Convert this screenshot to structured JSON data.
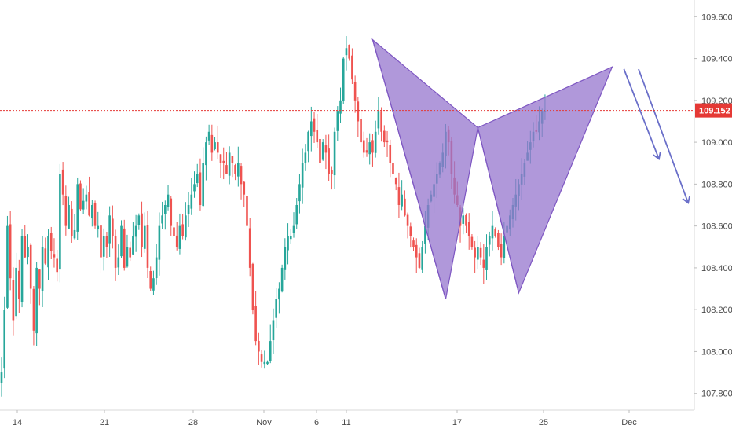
{
  "chart_data": {
    "type": "candlestick",
    "title": "",
    "xlabel": "",
    "ylabel": "",
    "ylim": [
      107.72,
      109.68
    ],
    "y_ticks": [
      107.8,
      108.0,
      108.2,
      108.4,
      108.6,
      108.8,
      109.0,
      109.2,
      109.4,
      109.6
    ],
    "y_tick_labels": [
      "107.800",
      "108.000",
      "108.200",
      "108.400",
      "108.600",
      "108.800",
      "109.000",
      "109.200",
      "109.400",
      "109.600"
    ],
    "x_tick_labels": [
      "14",
      "21",
      "28",
      "Nov",
      "6",
      "11",
      "17",
      "25",
      "Dec"
    ],
    "current_price": 109.152,
    "current_price_label": "109.152",
    "grid": false,
    "colors": {
      "up": "#26a69a",
      "down": "#ef5350",
      "pattern_fill": "#9575cd",
      "pattern_stroke": "#7e57c2",
      "arrow": "#6a6fc9",
      "price_line": "#e53935",
      "axis_text": "#4a4a4a"
    },
    "series_close": [
      107.9,
      108.2,
      108.6,
      108.35,
      108.15,
      108.4,
      108.25,
      108.55,
      108.45,
      108.5,
      108.3,
      108.1,
      108.4,
      108.3,
      108.5,
      108.42,
      108.55,
      108.48,
      108.45,
      108.38,
      108.85,
      108.75,
      108.6,
      108.7,
      108.55,
      108.58,
      108.8,
      108.68,
      108.72,
      108.75,
      108.65,
      108.7,
      108.6,
      108.6,
      108.45,
      108.55,
      108.5,
      108.65,
      108.55,
      108.4,
      108.45,
      108.6,
      108.4,
      108.5,
      108.45,
      108.55,
      108.6,
      108.65,
      108.5,
      108.6,
      108.4,
      108.3,
      108.35,
      108.45,
      108.6,
      108.65,
      108.7,
      108.75,
      108.6,
      108.55,
      108.5,
      108.6,
      108.55,
      108.65,
      108.7,
      108.75,
      108.8,
      108.85,
      108.7,
      108.9,
      109.0,
      109.05,
      108.95,
      109.0,
      108.95,
      108.9,
      108.9,
      108.85,
      108.95,
      108.9,
      108.85,
      108.9,
      108.8,
      108.75,
      108.6,
      108.4,
      108.2,
      108.05,
      108.0,
      107.95,
      107.95,
      107.95,
      108.05,
      108.15,
      108.25,
      108.3,
      108.4,
      108.5,
      108.55,
      108.55,
      108.6,
      108.7,
      108.8,
      108.9,
      108.95,
      109.05,
      109.1,
      109.05,
      109.0,
      108.9,
      109.0,
      108.95,
      108.85,
      108.85,
      109.05,
      109.15,
      109.2,
      109.4,
      109.45,
      109.4,
      109.3,
      109.2,
      109.1,
      109.0,
      108.95,
      108.95,
      109.0,
      108.95,
      109.05,
      109.15,
      109.05,
      109.0,
      109.0,
      108.9,
      108.85,
      108.8,
      108.7,
      108.75,
      108.65,
      108.6,
      108.55,
      108.5,
      108.45,
      108.4,
      108.5,
      108.6,
      108.7,
      108.75,
      108.8,
      108.85,
      108.9,
      108.95,
      109.05,
      109.0,
      108.85,
      108.75,
      108.7,
      108.6,
      108.65,
      108.6,
      108.55,
      108.5,
      108.45,
      108.5,
      108.45,
      108.4,
      108.5,
      108.55,
      108.6,
      108.55,
      108.5,
      108.45,
      108.55,
      108.6,
      108.65,
      108.7,
      108.75,
      108.8,
      108.85,
      108.9,
      108.95,
      109.0,
      109.05,
      109.05,
      109.1,
      109.15,
      109.15
    ]
  },
  "pattern": {
    "name": "bearish butterfly harmonic pattern",
    "points": [
      {
        "date_index": 127,
        "price": 109.49
      },
      {
        "date_index": 152,
        "price": 108.25
      },
      {
        "date_index": 163,
        "price": 109.07
      },
      {
        "date_index": 177,
        "price": 108.28
      },
      {
        "date_index": 209,
        "price": 109.36
      }
    ],
    "arrows": [
      {
        "from": {
          "date_index": 213,
          "price": 109.35
        },
        "to": {
          "date_index": 225,
          "price": 108.92
        }
      },
      {
        "from": {
          "date_index": 218,
          "price": 109.35
        },
        "to": {
          "date_index": 235,
          "price": 108.71
        }
      }
    ]
  }
}
